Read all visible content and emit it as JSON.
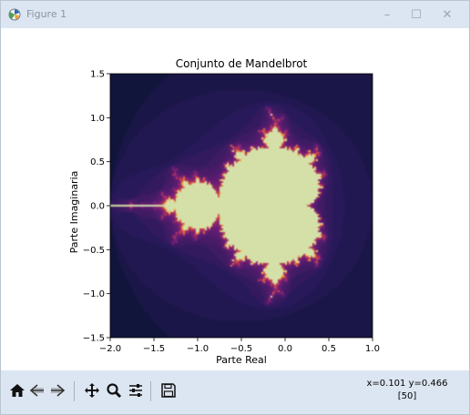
{
  "window": {
    "title": "Figure 1",
    "controls": {
      "minimize": "–",
      "maximize": "☐",
      "close": "✕"
    }
  },
  "chart_data": {
    "type": "heatmap",
    "title": "Conjunto de Mandelbrot",
    "xlabel": "Parte Real",
    "ylabel": "Parte Imaginaria",
    "xlim": [
      -2.0,
      1.0
    ],
    "ylim": [
      -1.5,
      1.5
    ],
    "xticks": [
      "−2.0",
      "−1.5",
      "−1.0",
      "−0.5",
      "0.0",
      "0.5",
      "1.0"
    ],
    "xtick_values": [
      -2.0,
      -1.5,
      -1.0,
      -0.5,
      0.0,
      0.5,
      1.0
    ],
    "yticks": [
      "1.5",
      "1.0",
      "0.5",
      "0.0",
      "−0.5",
      "−1.0",
      "−1.5"
    ],
    "ytick_values": [
      1.5,
      1.0,
      0.5,
      0.0,
      -0.5,
      -1.0,
      -1.5
    ],
    "colormap": "inferno-like",
    "max_iter": 50,
    "colors": {
      "background": "#0a1030",
      "inside": "#d4e0a8",
      "edge": "#f0a040"
    }
  },
  "toolbar": {
    "coords_line1": "x=0.101 y=0.466",
    "coords_line2": "[50]"
  }
}
